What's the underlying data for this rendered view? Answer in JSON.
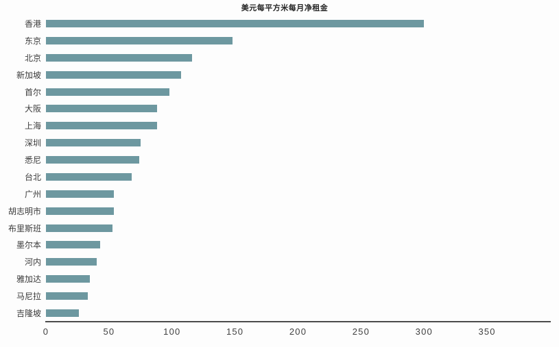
{
  "chart_data": {
    "type": "bar",
    "orientation": "horizontal",
    "title": "美元每平方米每月净租金",
    "categories": [
      "香港",
      "东京",
      "北京",
      "新加坡",
      "首尔",
      "大阪",
      "上海",
      "深圳",
      "悉尼",
      "台北",
      "广州",
      "胡志明市",
      "布里斯班",
      "墨尔本",
      "河内",
      "雅加达",
      "马尼拉",
      "吉隆坡"
    ],
    "values": [
      300,
      148,
      116,
      107,
      98,
      88,
      88,
      75,
      74,
      68,
      54,
      54,
      53,
      43,
      40,
      35,
      33,
      26
    ],
    "x_ticks": [
      0,
      50,
      100,
      150,
      200,
      250,
      300,
      350
    ],
    "xlabel": "",
    "ylabel": "",
    "xlim": [
      0,
      400
    ],
    "grid": false,
    "legend_position": "none",
    "bar_color": "#6d98a0",
    "axis_line_color": "#4b4b4b",
    "text_color": "#3a3a3a",
    "title_color": "#262626",
    "background_color": "#fdfdfd"
  }
}
